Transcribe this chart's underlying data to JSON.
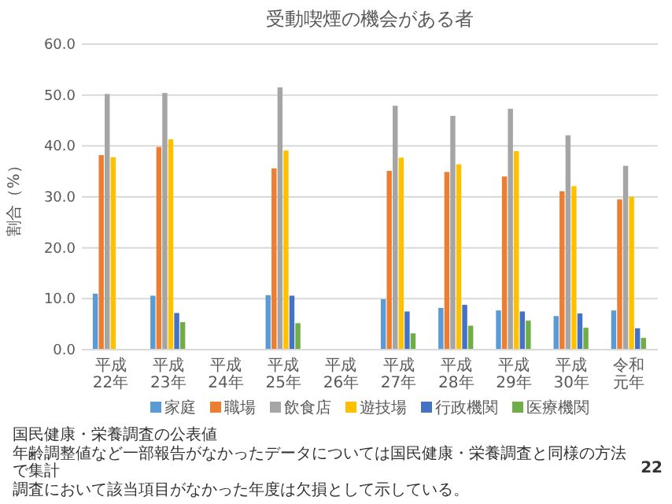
{
  "chart_data": {
    "type": "bar",
    "title": "受動喫煙の機会がある者",
    "ylabel": "割合（%）",
    "categories": [
      "平成22年",
      "平成23年",
      "平成24年",
      "平成25年",
      "平成26年",
      "平成27年",
      "平成28年",
      "平成29年",
      "平成30年",
      "令和元年"
    ],
    "series": [
      {
        "name": "家庭",
        "color": "#5b9bd5",
        "values": [
          11.0,
          10.6,
          null,
          10.7,
          null,
          9.9,
          8.2,
          7.7,
          6.6,
          7.7
        ]
      },
      {
        "name": "職場",
        "color": "#ed7d31",
        "values": [
          38.2,
          39.8,
          null,
          35.6,
          null,
          35.1,
          34.9,
          34.0,
          31.1,
          29.5
        ]
      },
      {
        "name": "飲食店",
        "color": "#a5a5a5",
        "values": [
          50.2,
          50.4,
          null,
          51.5,
          null,
          47.9,
          45.9,
          47.3,
          42.1,
          36.1
        ]
      },
      {
        "name": "遊技場",
        "color": "#ffc000",
        "values": [
          37.8,
          41.3,
          null,
          39.1,
          null,
          37.7,
          36.4,
          39.0,
          32.1,
          30.0
        ]
      },
      {
        "name": "行政機関",
        "color": "#4472c4",
        "values": [
          null,
          7.2,
          null,
          10.6,
          null,
          7.5,
          8.8,
          7.5,
          7.1,
          4.2
        ]
      },
      {
        "name": "医療機関",
        "color": "#70ad47",
        "values": [
          null,
          5.4,
          null,
          5.2,
          null,
          3.2,
          4.7,
          5.7,
          4.3,
          2.3
        ]
      }
    ],
    "ylim": [
      0,
      60
    ],
    "yticks": [
      {
        "value": 0,
        "label": "0.0"
      },
      {
        "value": 10,
        "label": "10.0"
      },
      {
        "value": 20,
        "label": "20.0"
      },
      {
        "value": 30,
        "label": "30.0"
      },
      {
        "value": 40,
        "label": "40.0"
      },
      {
        "value": 50,
        "label": "50.0"
      },
      {
        "value": 60,
        "label": "60.0"
      }
    ],
    "grid": "y",
    "legend": "bottom",
    "annotations": [
      "国民健康・栄養調査の公表値",
      "年齢調整値など一部報告がなかったデータについては国民健康・栄養調査と同様の方法で集計",
      "調査において該当項目がなかった年度は欠損として示している。",
      "22"
    ]
  }
}
